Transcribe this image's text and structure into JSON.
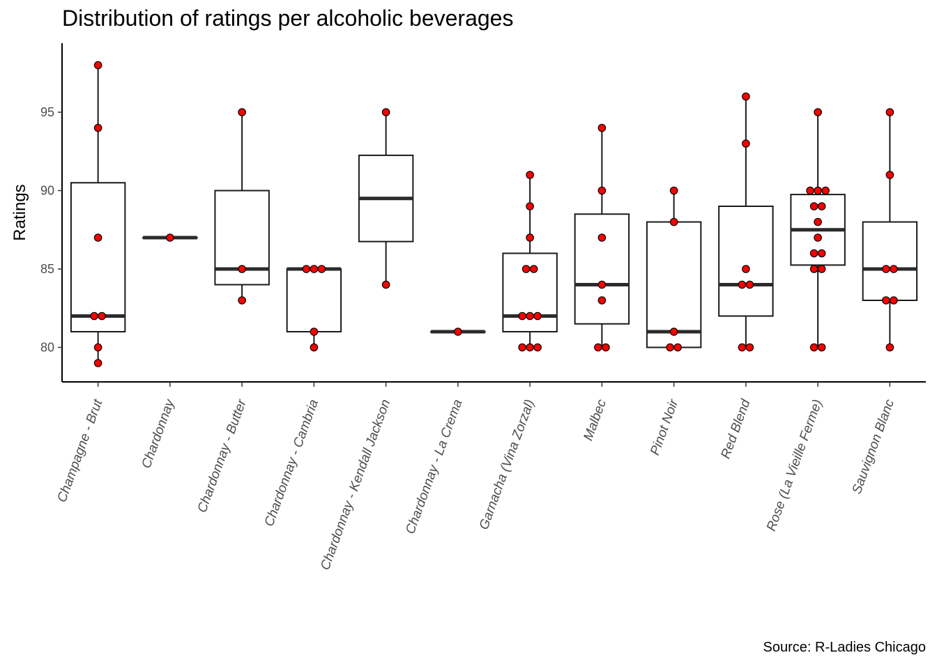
{
  "chart_data": {
    "type": "boxplot",
    "title": "Distribution of ratings per alcoholic beverages",
    "ylabel": "Ratings",
    "xlabel": "",
    "caption": "Source: R-Ladies Chicago",
    "ylim": [
      77.8,
      99.4
    ],
    "yticks": [
      "80",
      "85",
      "90",
      "95"
    ],
    "point_color": "#ff0000",
    "box_color": "#1a1a1a",
    "categories": [
      {
        "label": "Champagne - Brut",
        "box": {
          "q1": 81,
          "median": 82,
          "q3": 90.5,
          "lower": 79,
          "upper": 98
        },
        "points": [
          98,
          94,
          87,
          82,
          82,
          80,
          79
        ]
      },
      {
        "label": "Chardonnay",
        "box": {
          "q1": 87,
          "median": 87,
          "q3": 87,
          "lower": 87,
          "upper": 87
        },
        "points": [
          87
        ]
      },
      {
        "label": "Chardonnay - Butter",
        "box": {
          "q1": 84,
          "median": 85,
          "q3": 90,
          "lower": 83,
          "upper": 95
        },
        "points": [
          95,
          85,
          83
        ]
      },
      {
        "label": "Chardonnay - Cambria",
        "box": {
          "q1": 81,
          "median": 85,
          "q3": 85,
          "lower": 80,
          "upper": 85
        },
        "points": [
          85,
          85,
          85,
          81,
          80
        ]
      },
      {
        "label": "Chardonnay - Kendall Jackson",
        "box": {
          "q1": 86.75,
          "median": 89.5,
          "q3": 92.25,
          "lower": 84,
          "upper": 95
        },
        "points": [
          95,
          84
        ]
      },
      {
        "label": "Chardonnay - La Crema",
        "box": {
          "q1": 81,
          "median": 81,
          "q3": 81,
          "lower": 81,
          "upper": 81
        },
        "points": [
          81
        ]
      },
      {
        "label": "Garnacha (Vina Zorzal)",
        "box": {
          "q1": 81,
          "median": 82,
          "q3": 86,
          "lower": 80,
          "upper": 91
        },
        "points": [
          91,
          89,
          87,
          85,
          85,
          82,
          82,
          82,
          80,
          80,
          80
        ]
      },
      {
        "label": "Malbec",
        "box": {
          "q1": 81.5,
          "median": 84,
          "q3": 88.5,
          "lower": 80,
          "upper": 94
        },
        "points": [
          94,
          90,
          87,
          84,
          83,
          80,
          80
        ]
      },
      {
        "label": "Pinot Noir",
        "box": {
          "q1": 80,
          "median": 81,
          "q3": 88,
          "lower": 80,
          "upper": 90
        },
        "points": [
          90,
          88,
          81,
          80,
          80
        ]
      },
      {
        "label": "Red Blend",
        "box": {
          "q1": 82,
          "median": 84,
          "q3": 89,
          "lower": 80,
          "upper": 96
        },
        "points": [
          96,
          93,
          85,
          84,
          84,
          80,
          80
        ]
      },
      {
        "label": "Rose (La Vieille Ferme)",
        "box": {
          "q1": 85.25,
          "median": 87.5,
          "q3": 89.75,
          "lower": 80,
          "upper": 95
        },
        "points": [
          95,
          90,
          90,
          90,
          89,
          89,
          88,
          87,
          86,
          86,
          85,
          85,
          80,
          80
        ]
      },
      {
        "label": "Sauvignon Blanc",
        "box": {
          "q1": 83,
          "median": 85,
          "q3": 88,
          "lower": 80,
          "upper": 95
        },
        "points": [
          95,
          91,
          85,
          85,
          83,
          83,
          80
        ]
      }
    ]
  }
}
